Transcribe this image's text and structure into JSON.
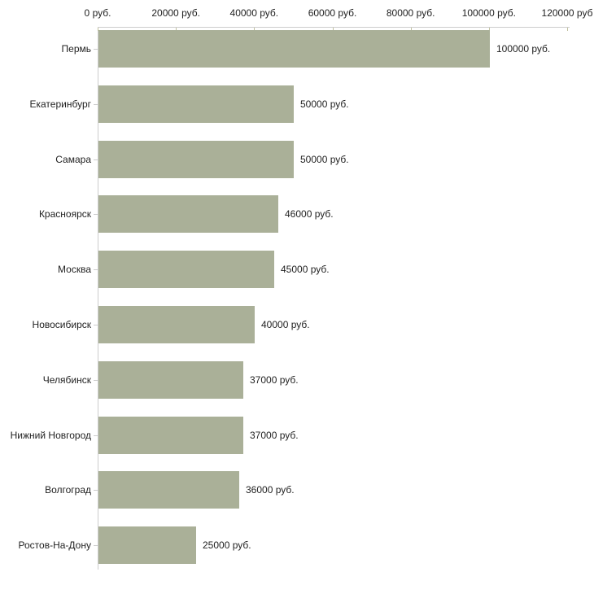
{
  "chart_data": {
    "type": "bar",
    "orientation": "horizontal",
    "title": "",
    "xlabel": "",
    "ylabel": "",
    "categories": [
      "Пермь",
      "Екатеринбург",
      "Самара",
      "Красноярск",
      "Москва",
      "Новосибирск",
      "Челябинск",
      "Нижний Новгород",
      "Волгоград",
      "Ростов-На-Дону"
    ],
    "values": [
      100000,
      50000,
      50000,
      46000,
      45000,
      40000,
      37000,
      37000,
      36000,
      25000
    ],
    "value_labels": [
      "100000 руб.",
      "50000 руб.",
      "50000 руб.",
      "46000 руб.",
      "45000 руб.",
      "40000 руб.",
      "37000 руб.",
      "37000 руб.",
      "36000 руб.",
      "25000 руб."
    ],
    "x_axis": {
      "position": "top",
      "min": 0,
      "max": 120000,
      "tick_values": [
        0,
        20000,
        40000,
        60000,
        80000,
        100000,
        120000
      ],
      "tick_labels": [
        "0 руб.",
        "20000 руб.",
        "40000 руб.",
        "60000 руб.",
        "80000 руб.",
        "100000 руб.",
        "120000 руб"
      ]
    },
    "grid": false,
    "legend": false,
    "colors": {
      "bar_fill": "#aab098",
      "axis_line": "#cccccc",
      "x_tick_mark": "#c2c2a0",
      "y_tick_mark": "#cccccc",
      "text": "#222222",
      "background": "#ffffff"
    }
  }
}
